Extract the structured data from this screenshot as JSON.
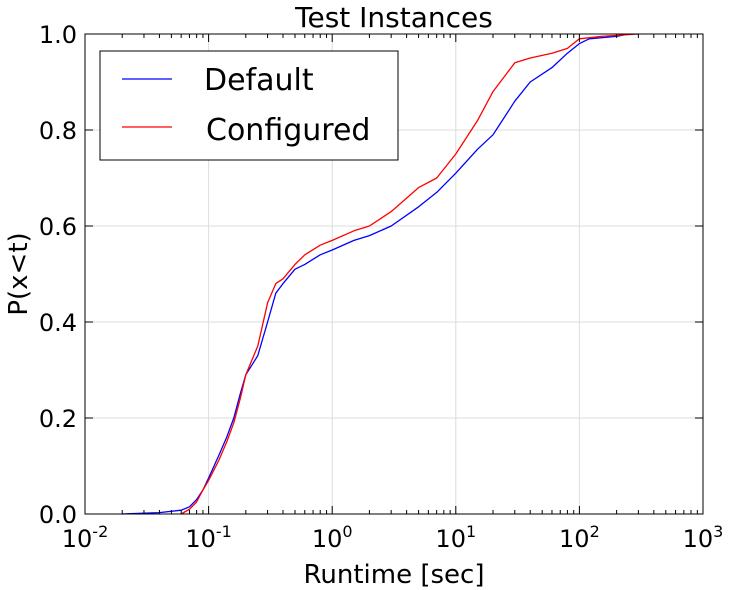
{
  "chart_data": {
    "type": "line",
    "title": "Test Instances",
    "xlabel": "Runtime [sec]",
    "ylabel": "P(x<t)",
    "x_scale": "log",
    "xlim": [
      0.01,
      1000
    ],
    "ylim": [
      0.0,
      1.0
    ],
    "grid": true,
    "legend_position": "top-left",
    "x_tick_labels": [
      {
        "base": "10",
        "exp": "-2"
      },
      {
        "base": "10",
        "exp": "-1"
      },
      {
        "base": "10",
        "exp": "0"
      },
      {
        "base": "10",
        "exp": "1"
      },
      {
        "base": "10",
        "exp": "2"
      },
      {
        "base": "10",
        "exp": "3"
      }
    ],
    "y_tick_labels": [
      "0.0",
      "0.2",
      "0.4",
      "0.6",
      "0.8",
      "1.0"
    ],
    "series": [
      {
        "name": "Default",
        "color": "#0000ff",
        "points": [
          [
            0.02,
            0.0
          ],
          [
            0.04,
            0.003
          ],
          [
            0.06,
            0.008
          ],
          [
            0.07,
            0.015
          ],
          [
            0.08,
            0.03
          ],
          [
            0.09,
            0.05
          ],
          [
            0.1,
            0.075
          ],
          [
            0.12,
            0.12
          ],
          [
            0.14,
            0.16
          ],
          [
            0.16,
            0.2
          ],
          [
            0.18,
            0.25
          ],
          [
            0.2,
            0.29
          ],
          [
            0.25,
            0.33
          ],
          [
            0.3,
            0.4
          ],
          [
            0.35,
            0.46
          ],
          [
            0.4,
            0.48
          ],
          [
            0.5,
            0.51
          ],
          [
            0.6,
            0.52
          ],
          [
            0.8,
            0.54
          ],
          [
            1.0,
            0.55
          ],
          [
            1.5,
            0.57
          ],
          [
            2.0,
            0.58
          ],
          [
            3.0,
            0.6
          ],
          [
            5.0,
            0.64
          ],
          [
            7.0,
            0.67
          ],
          [
            10.0,
            0.71
          ],
          [
            15.0,
            0.76
          ],
          [
            20.0,
            0.79
          ],
          [
            30.0,
            0.86
          ],
          [
            40.0,
            0.9
          ],
          [
            60.0,
            0.93
          ],
          [
            80.0,
            0.96
          ],
          [
            100.0,
            0.98
          ],
          [
            120.0,
            0.99
          ],
          [
            200.0,
            0.995
          ],
          [
            250.0,
            1.0
          ]
        ]
      },
      {
        "name": "Configured",
        "color": "#ff0000",
        "points": [
          [
            0.06,
            0.0
          ],
          [
            0.07,
            0.01
          ],
          [
            0.08,
            0.025
          ],
          [
            0.09,
            0.05
          ],
          [
            0.1,
            0.07
          ],
          [
            0.12,
            0.11
          ],
          [
            0.14,
            0.15
          ],
          [
            0.16,
            0.19
          ],
          [
            0.18,
            0.24
          ],
          [
            0.2,
            0.29
          ],
          [
            0.25,
            0.35
          ],
          [
            0.3,
            0.44
          ],
          [
            0.35,
            0.48
          ],
          [
            0.4,
            0.49
          ],
          [
            0.5,
            0.52
          ],
          [
            0.6,
            0.54
          ],
          [
            0.8,
            0.56
          ],
          [
            1.0,
            0.57
          ],
          [
            1.5,
            0.59
          ],
          [
            2.0,
            0.6
          ],
          [
            3.0,
            0.63
          ],
          [
            5.0,
            0.68
          ],
          [
            7.0,
            0.7
          ],
          [
            10.0,
            0.75
          ],
          [
            15.0,
            0.82
          ],
          [
            20.0,
            0.88
          ],
          [
            30.0,
            0.94
          ],
          [
            40.0,
            0.95
          ],
          [
            60.0,
            0.96
          ],
          [
            80.0,
            0.97
          ],
          [
            100.0,
            0.99
          ],
          [
            150.0,
            0.995
          ],
          [
            300.0,
            1.0
          ]
        ]
      }
    ]
  }
}
